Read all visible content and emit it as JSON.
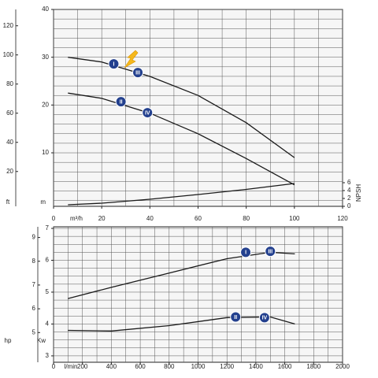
{
  "chart_data": [
    {
      "type": "line",
      "x_label": "m³/h",
      "y_label": "m",
      "y3_label": "ft",
      "y2_label": "NPSH",
      "xlim": [
        0,
        120
      ],
      "xticks": [
        0,
        20,
        40,
        60,
        80,
        100,
        120
      ],
      "ylim": [
        -1.2,
        40
      ],
      "yticks": [
        10,
        20,
        30,
        40
      ],
      "y3lim": [
        -3.9,
        131.2
      ],
      "y3ticks": [
        20,
        40,
        60,
        80,
        100,
        120
      ],
      "y2lim": [
        0,
        50
      ],
      "y2ticks": [
        0,
        2,
        4,
        6
      ],
      "xgrid": [
        0,
        10,
        20,
        30,
        40,
        50,
        60,
        70,
        80,
        90,
        100,
        110,
        120
      ],
      "ygrid": [
        0,
        2,
        4,
        6,
        8,
        10,
        12,
        14,
        16,
        18,
        20,
        22,
        24,
        26,
        28,
        30,
        32,
        34,
        36,
        38,
        40
      ],
      "x": [
        6,
        20,
        40,
        60,
        80,
        100
      ],
      "series": [
        {
          "color": "#1a1a1a",
          "values": [
            30,
            29,
            26,
            22,
            16.3,
            9
          ]
        },
        {
          "color": "#1a1a1a",
          "values": [
            22.5,
            21.4,
            18.3,
            14,
            8.8,
            3.3
          ]
        },
        {
          "color": "#1a1a1a",
          "axis": "y2",
          "values": [
            0.4,
            0.8,
            1.8,
            3,
            4.3,
            5.8
          ]
        }
      ],
      "markers": [
        {
          "label": "I",
          "x": 25,
          "y": 28.6
        },
        {
          "label": "III",
          "x": 35,
          "y": 26.8
        },
        {
          "label": "II",
          "x": 28,
          "y": 20.7
        },
        {
          "label": "IV",
          "x": 39,
          "y": 18.4
        }
      ]
    },
    {
      "type": "line",
      "x_label": "l/min",
      "y_label": "Kw",
      "y3_label": "hp",
      "xlim": [
        0,
        2000
      ],
      "xticks": [
        0,
        200,
        400,
        600,
        800,
        1000,
        1200,
        1400,
        1600,
        1800,
        2000
      ],
      "ylim": [
        2.8,
        7.05
      ],
      "yticks": [
        3,
        4,
        5,
        6,
        7
      ],
      "y3lim": [
        3.75,
        9.45
      ],
      "y3ticks": [
        5,
        6,
        7,
        8,
        9
      ],
      "xgrid": [
        0,
        100,
        200,
        300,
        400,
        500,
        600,
        700,
        800,
        900,
        1000,
        1100,
        1200,
        1300,
        1400,
        1500,
        1600,
        1700,
        1800,
        1900,
        2000
      ],
      "ygrid": [
        3,
        3.25,
        3.5,
        3.75,
        4,
        4.25,
        4.5,
        4.75,
        5,
        5.25,
        5.5,
        5.75,
        6,
        6.25,
        6.5,
        6.75,
        7
      ],
      "x": [
        100,
        400,
        800,
        1200,
        1500,
        1670
      ],
      "series": [
        {
          "color": "#1a1a1a",
          "values": [
            4.8,
            5.15,
            5.6,
            6.05,
            6.25,
            6.2
          ]
        },
        {
          "color": "#1a1a1a",
          "values": [
            3.8,
            3.78,
            3.95,
            4.2,
            4.22,
            4
          ]
        }
      ],
      "markers": [
        {
          "label": "I",
          "x": 1330,
          "y": 6.25
        },
        {
          "label": "III",
          "x": 1500,
          "y": 6.28
        },
        {
          "label": "II",
          "x": 1260,
          "y": 4.22
        },
        {
          "label": "IV",
          "x": 1460,
          "y": 4.2
        }
      ]
    }
  ]
}
